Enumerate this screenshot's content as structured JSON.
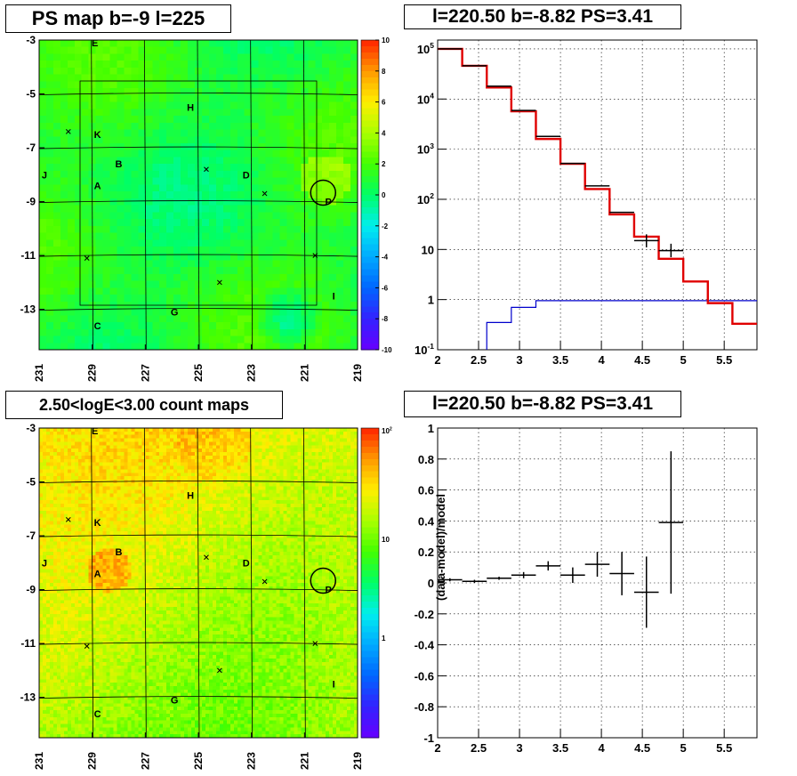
{
  "titles": {
    "map_top": "PS map b=-9 l=225",
    "spectrum": "l=220.50 b=-8.82 PS=3.41",
    "map_bottom": "2.50<logE<3.00 count maps",
    "residual": "l=220.50 b=-8.82 PS=3.41"
  },
  "colors": {
    "data_hist": "#000000",
    "model_hist": "#e00000",
    "ps_hist": "#0000cc",
    "grid": "#000000"
  },
  "chart_data": [
    {
      "type": "heatmap",
      "name": "ps_map",
      "xlabels": [
        "231",
        "229",
        "227",
        "225",
        "223",
        "221",
        "219"
      ],
      "ylabels": [
        "-3",
        "-5",
        "-7",
        "-9",
        "-11",
        "-13"
      ],
      "xlim": [
        231,
        219
      ],
      "ylim": [
        -14.5,
        -3
      ],
      "colorbar": {
        "ticks": [
          "10",
          "8",
          "6",
          "4",
          "2",
          "0",
          "-2",
          "-4",
          "-6",
          "-8",
          "-10"
        ],
        "range": [
          -10,
          10
        ],
        "scale": "linear"
      },
      "sources": [
        {
          "label": "E",
          "l": 228.9,
          "b": -3.1
        },
        {
          "label": "H",
          "l": 225.3,
          "b": -5.5
        },
        {
          "label": "K",
          "l": 228.8,
          "b": -6.5
        },
        {
          "label": "B",
          "l": 228.0,
          "b": -7.6
        },
        {
          "label": "J",
          "l": 230.8,
          "b": -8.0
        },
        {
          "label": "A",
          "l": 228.8,
          "b": -8.4
        },
        {
          "label": "D",
          "l": 223.2,
          "b": -8.0
        },
        {
          "label": "P",
          "l": 220.1,
          "b": -9.0
        },
        {
          "label": "I",
          "l": 219.9,
          "b": -12.5
        },
        {
          "label": "G",
          "l": 225.9,
          "b": -13.1
        },
        {
          "label": "C",
          "l": 228.8,
          "b": -13.6
        }
      ],
      "crosses": [
        {
          "l": 229.9,
          "b": -6.4
        },
        {
          "l": 224.7,
          "b": -7.8
        },
        {
          "l": 222.5,
          "b": -8.7
        },
        {
          "l": 229.2,
          "b": -11.1
        },
        {
          "l": 220.6,
          "b": -11.0
        },
        {
          "l": 224.2,
          "b": -12.0
        }
      ],
      "circle": {
        "l": 220.5,
        "b": -8.8
      }
    },
    {
      "type": "line",
      "name": "spectrum",
      "xlim": [
        2,
        5.9
      ],
      "ylim": [
        0.1,
        150000
      ],
      "yscale": "log",
      "xticks": [
        "2",
        "2.5",
        "3",
        "3.5",
        "4",
        "4.5",
        "5",
        "5.5"
      ],
      "yticks": [
        "10^-1",
        "1",
        "10",
        "10^2",
        "10^3",
        "10^4",
        "10^5"
      ],
      "grid": true,
      "data_points": [
        {
          "x": 2.15,
          "y": 100000
        },
        {
          "x": 2.45,
          "y": 46000
        },
        {
          "x": 2.75,
          "y": 18000
        },
        {
          "x": 3.05,
          "y": 5900
        },
        {
          "x": 3.35,
          "y": 1800
        },
        {
          "x": 3.65,
          "y": 520
        },
        {
          "x": 3.95,
          "y": 185
        },
        {
          "x": 4.25,
          "y": 55
        },
        {
          "x": 4.55,
          "y": 15,
          "err_low": 11,
          "err_high": 20
        },
        {
          "x": 4.85,
          "y": 9.5,
          "err_low": 7,
          "err_high": 13
        }
      ],
      "model_edges": [
        2.0,
        2.3,
        2.6,
        2.9,
        3.2,
        3.5,
        3.8,
        4.1,
        4.4,
        4.7,
        5.0,
        5.3,
        5.6,
        5.9
      ],
      "model_values": [
        100000,
        46000,
        17000,
        5700,
        1600,
        510,
        160,
        50,
        18,
        6.5,
        2.3,
        0.85,
        0.33
      ],
      "ps_edges": [
        2.6,
        2.9,
        3.2,
        5.9
      ],
      "ps_values": [
        0.35,
        0.7,
        0.95
      ]
    },
    {
      "type": "heatmap",
      "name": "count_map",
      "xlabels": [
        "231",
        "229",
        "227",
        "225",
        "223",
        "221",
        "219"
      ],
      "ylabels": [
        "-3",
        "-5",
        "-7",
        "-9",
        "-11",
        "-13"
      ],
      "xlim": [
        231,
        219
      ],
      "ylim": [
        -14.5,
        -3
      ],
      "colorbar": {
        "ticks": [
          "10^2",
          "10",
          "1"
        ],
        "scale": "log"
      }
    },
    {
      "type": "scatter",
      "name": "residual",
      "xlim": [
        2,
        5.9
      ],
      "ylim": [
        -1,
        1
      ],
      "ylabel": "(data-model)/model",
      "xticks": [
        "2",
        "2.5",
        "3",
        "3.5",
        "4",
        "4.5",
        "5",
        "5.5"
      ],
      "yticks": [
        "1",
        "0.8",
        "0.6",
        "0.4",
        "0.2",
        "0",
        "-0.2",
        "-0.4",
        "-0.6",
        "-0.8",
        "-1"
      ],
      "grid": true,
      "points": [
        {
          "x": 2.15,
          "y": 0.02,
          "xerr": 0.15,
          "yerr": 0.01
        },
        {
          "x": 2.45,
          "y": 0.01,
          "xerr": 0.15,
          "yerr": 0.01
        },
        {
          "x": 2.75,
          "y": 0.03,
          "xerr": 0.15,
          "yerr": 0.01
        },
        {
          "x": 3.05,
          "y": 0.05,
          "xerr": 0.15,
          "yerr": 0.02
        },
        {
          "x": 3.35,
          "y": 0.11,
          "xerr": 0.15,
          "yerr": 0.03
        },
        {
          "x": 3.65,
          "y": 0.05,
          "xerr": 0.15,
          "yerr": 0.05
        },
        {
          "x": 3.95,
          "y": 0.12,
          "xerr": 0.15,
          "yerr": 0.08
        },
        {
          "x": 4.25,
          "y": 0.06,
          "xerr": 0.15,
          "yerr": 0.14
        },
        {
          "x": 4.55,
          "y": -0.06,
          "xerr": 0.15,
          "yerr": 0.23
        },
        {
          "x": 4.85,
          "y": 0.39,
          "xerr": 0.15,
          "yerr": 0.46
        }
      ]
    }
  ]
}
